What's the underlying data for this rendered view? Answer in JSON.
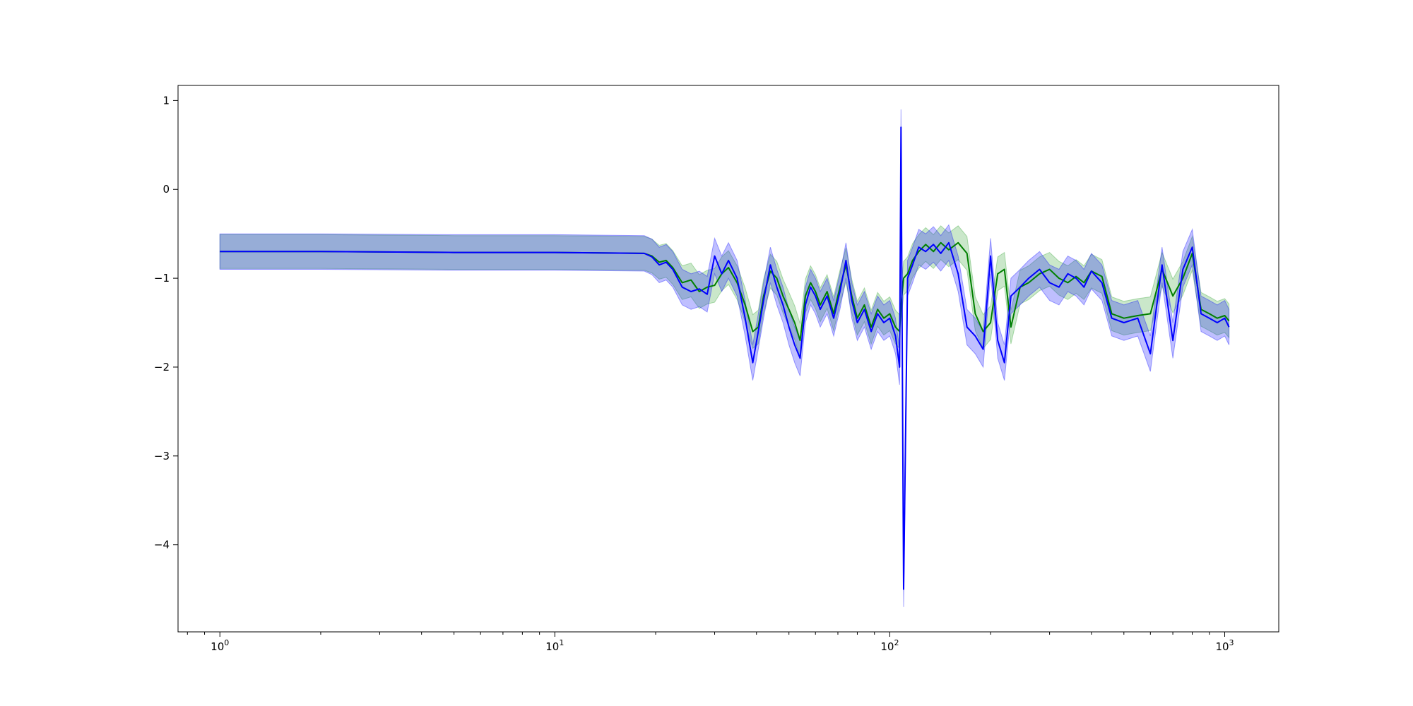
{
  "chart_data": {
    "type": "line",
    "title": "",
    "xlabel": "",
    "ylabel": "",
    "xscale": "log",
    "xlim": [
      0.75,
      1450
    ],
    "ylim": [
      -4.98,
      1.17
    ],
    "x_ticks": [
      {
        "value": 1,
        "base": "10",
        "exp": "0"
      },
      {
        "value": 10,
        "base": "10",
        "exp": "1"
      },
      {
        "value": 100,
        "base": "10",
        "exp": "2"
      },
      {
        "value": 1000,
        "base": "10",
        "exp": "3"
      }
    ],
    "y_ticks": [
      {
        "value": 1,
        "label": "1"
      },
      {
        "value": 0,
        "label": "0"
      },
      {
        "value": -1,
        "label": "−1"
      },
      {
        "value": -2,
        "label": "−2"
      },
      {
        "value": -3,
        "label": "−3"
      },
      {
        "value": -4,
        "label": "−4"
      }
    ],
    "grid": false,
    "legend": "none",
    "series": [
      {
        "color": "#008000",
        "band_color": "#2ca02c",
        "band_halfwidth": 0.19,
        "x": [
          1,
          2,
          5,
          10,
          18.5,
          19.5,
          20.5,
          21.5,
          22.5,
          24,
          25.5,
          27,
          28.5,
          30,
          31.5,
          33,
          35,
          37,
          39,
          40.5,
          42,
          44,
          46,
          48,
          50,
          52,
          54,
          56,
          58,
          60,
          62,
          65,
          68,
          71,
          74,
          77,
          80,
          84,
          88,
          92,
          96,
          100,
          104,
          107,
          108,
          110,
          113,
          117,
          122,
          128,
          135,
          142,
          150,
          160,
          170,
          180,
          190,
          200,
          210,
          220,
          230,
          245,
          260,
          280,
          300,
          320,
          340,
          360,
          380,
          400,
          430,
          460,
          500,
          550,
          600,
          650,
          700,
          750,
          800,
          850,
          900,
          950,
          1000,
          1030
        ],
        "y": [
          -0.7,
          -0.7,
          -0.71,
          -0.71,
          -0.72,
          -0.75,
          -0.82,
          -0.8,
          -0.88,
          -1.05,
          -1.02,
          -1.15,
          -1.1,
          -1.08,
          -0.95,
          -0.88,
          -1.05,
          -1.3,
          -1.6,
          -1.55,
          -1.2,
          -0.92,
          -1.0,
          -1.2,
          -1.35,
          -1.5,
          -1.7,
          -1.2,
          -1.05,
          -1.15,
          -1.3,
          -1.15,
          -1.4,
          -1.1,
          -0.85,
          -1.2,
          -1.45,
          -1.3,
          -1.55,
          -1.35,
          -1.45,
          -1.4,
          -1.55,
          -1.6,
          -1.3,
          -1.0,
          -0.95,
          -0.8,
          -0.7,
          -0.62,
          -0.7,
          -0.6,
          -0.68,
          -0.6,
          -0.72,
          -1.4,
          -1.6,
          -1.5,
          -0.95,
          -0.9,
          -1.55,
          -1.1,
          -1.05,
          -0.95,
          -0.9,
          -1.0,
          -1.05,
          -0.98,
          -1.05,
          -0.92,
          -0.98,
          -1.4,
          -1.45,
          -1.42,
          -1.4,
          -0.9,
          -1.2,
          -1.0,
          -0.72,
          -1.35,
          -1.4,
          -1.45,
          -1.42,
          -1.48
        ]
      },
      {
        "color": "#0000ff",
        "band_color": "#0000ff",
        "band_halfwidth": 0.2,
        "x": [
          1,
          2,
          5,
          10,
          18.5,
          19.5,
          20.5,
          21.5,
          22.5,
          24,
          25.5,
          27,
          28.5,
          30,
          31.5,
          33,
          35,
          37,
          39,
          40.5,
          42,
          44,
          46,
          48,
          50,
          52,
          54,
          56,
          58,
          60,
          62,
          65,
          68,
          71,
          74,
          77,
          80,
          84,
          88,
          92,
          96,
          100,
          104,
          107,
          108,
          110,
          113,
          117,
          122,
          128,
          135,
          142,
          150,
          160,
          170,
          180,
          190,
          200,
          210,
          220,
          230,
          245,
          260,
          280,
          300,
          320,
          340,
          360,
          380,
          400,
          430,
          460,
          500,
          550,
          600,
          650,
          700,
          750,
          800,
          850,
          900,
          950,
          1000,
          1030
        ],
        "y": [
          -0.7,
          -0.7,
          -0.71,
          -0.71,
          -0.72,
          -0.76,
          -0.85,
          -0.82,
          -0.9,
          -1.1,
          -1.15,
          -1.12,
          -1.18,
          -0.75,
          -0.95,
          -0.8,
          -1.0,
          -1.45,
          -1.95,
          -1.6,
          -1.25,
          -0.85,
          -1.1,
          -1.3,
          -1.55,
          -1.75,
          -1.9,
          -1.3,
          -1.1,
          -1.2,
          -1.35,
          -1.2,
          -1.45,
          -1.15,
          -0.8,
          -1.25,
          -1.5,
          -1.35,
          -1.6,
          -1.4,
          -1.5,
          -1.45,
          -1.65,
          -2.0,
          0.7,
          -4.5,
          -1.0,
          -0.85,
          -0.65,
          -0.7,
          -0.62,
          -0.72,
          -0.6,
          -0.95,
          -1.55,
          -1.65,
          -1.8,
          -0.75,
          -1.7,
          -1.95,
          -1.2,
          -1.1,
          -1.0,
          -0.9,
          -1.05,
          -1.1,
          -0.95,
          -1.0,
          -1.1,
          -0.92,
          -1.05,
          -1.45,
          -1.5,
          -1.45,
          -1.85,
          -0.85,
          -1.7,
          -0.9,
          -0.65,
          -1.4,
          -1.45,
          -1.5,
          -1.45,
          -1.55
        ]
      }
    ]
  }
}
